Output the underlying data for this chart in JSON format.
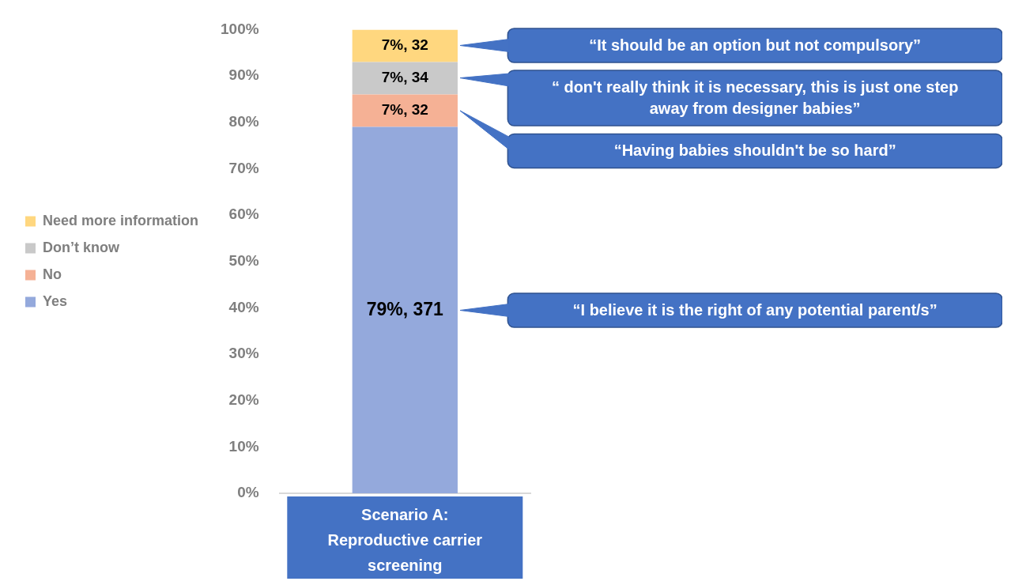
{
  "chart_data": {
    "type": "bar",
    "stacked": true,
    "categories": [
      "Scenario A: Reproductive carrier screening"
    ],
    "series": [
      {
        "name": "Yes",
        "color": "#94a9dc",
        "values": [
          79
        ],
        "value_labels": [
          "79%, 371"
        ]
      },
      {
        "name": "No",
        "color": "#f5b195",
        "values": [
          7
        ],
        "value_labels": [
          "7%, 32"
        ]
      },
      {
        "name": "Don’t know",
        "color": "#c9c9c9",
        "values": [
          7
        ],
        "value_labels": [
          "7%, 34"
        ]
      },
      {
        "name": "Need more information",
        "color": "#ffd77f",
        "values": [
          7
        ],
        "value_labels": [
          "7%, 32"
        ]
      }
    ],
    "ylim": [
      0,
      100
    ],
    "yticks": [
      {
        "value": 0,
        "label": "0%"
      },
      {
        "value": 10,
        "label": "10%"
      },
      {
        "value": 20,
        "label": "20%"
      },
      {
        "value": 30,
        "label": "30%"
      },
      {
        "value": 40,
        "label": "40%"
      },
      {
        "value": 50,
        "label": "50%"
      },
      {
        "value": 60,
        "label": "60%"
      },
      {
        "value": 70,
        "label": "70%"
      },
      {
        "value": 80,
        "label": "80%"
      },
      {
        "value": 90,
        "label": "90%"
      },
      {
        "value": 100,
        "label": "100%"
      }
    ],
    "grid": false,
    "legend": "left",
    "annotations": [
      "“It should be an option but not compulsory”",
      "“ don't really think it is necessary, this is just one step away from designer babies”",
      "“Having babies shouldn't be so hard”",
      "“I believe it is the right of any potential parent/s”"
    ]
  }
}
